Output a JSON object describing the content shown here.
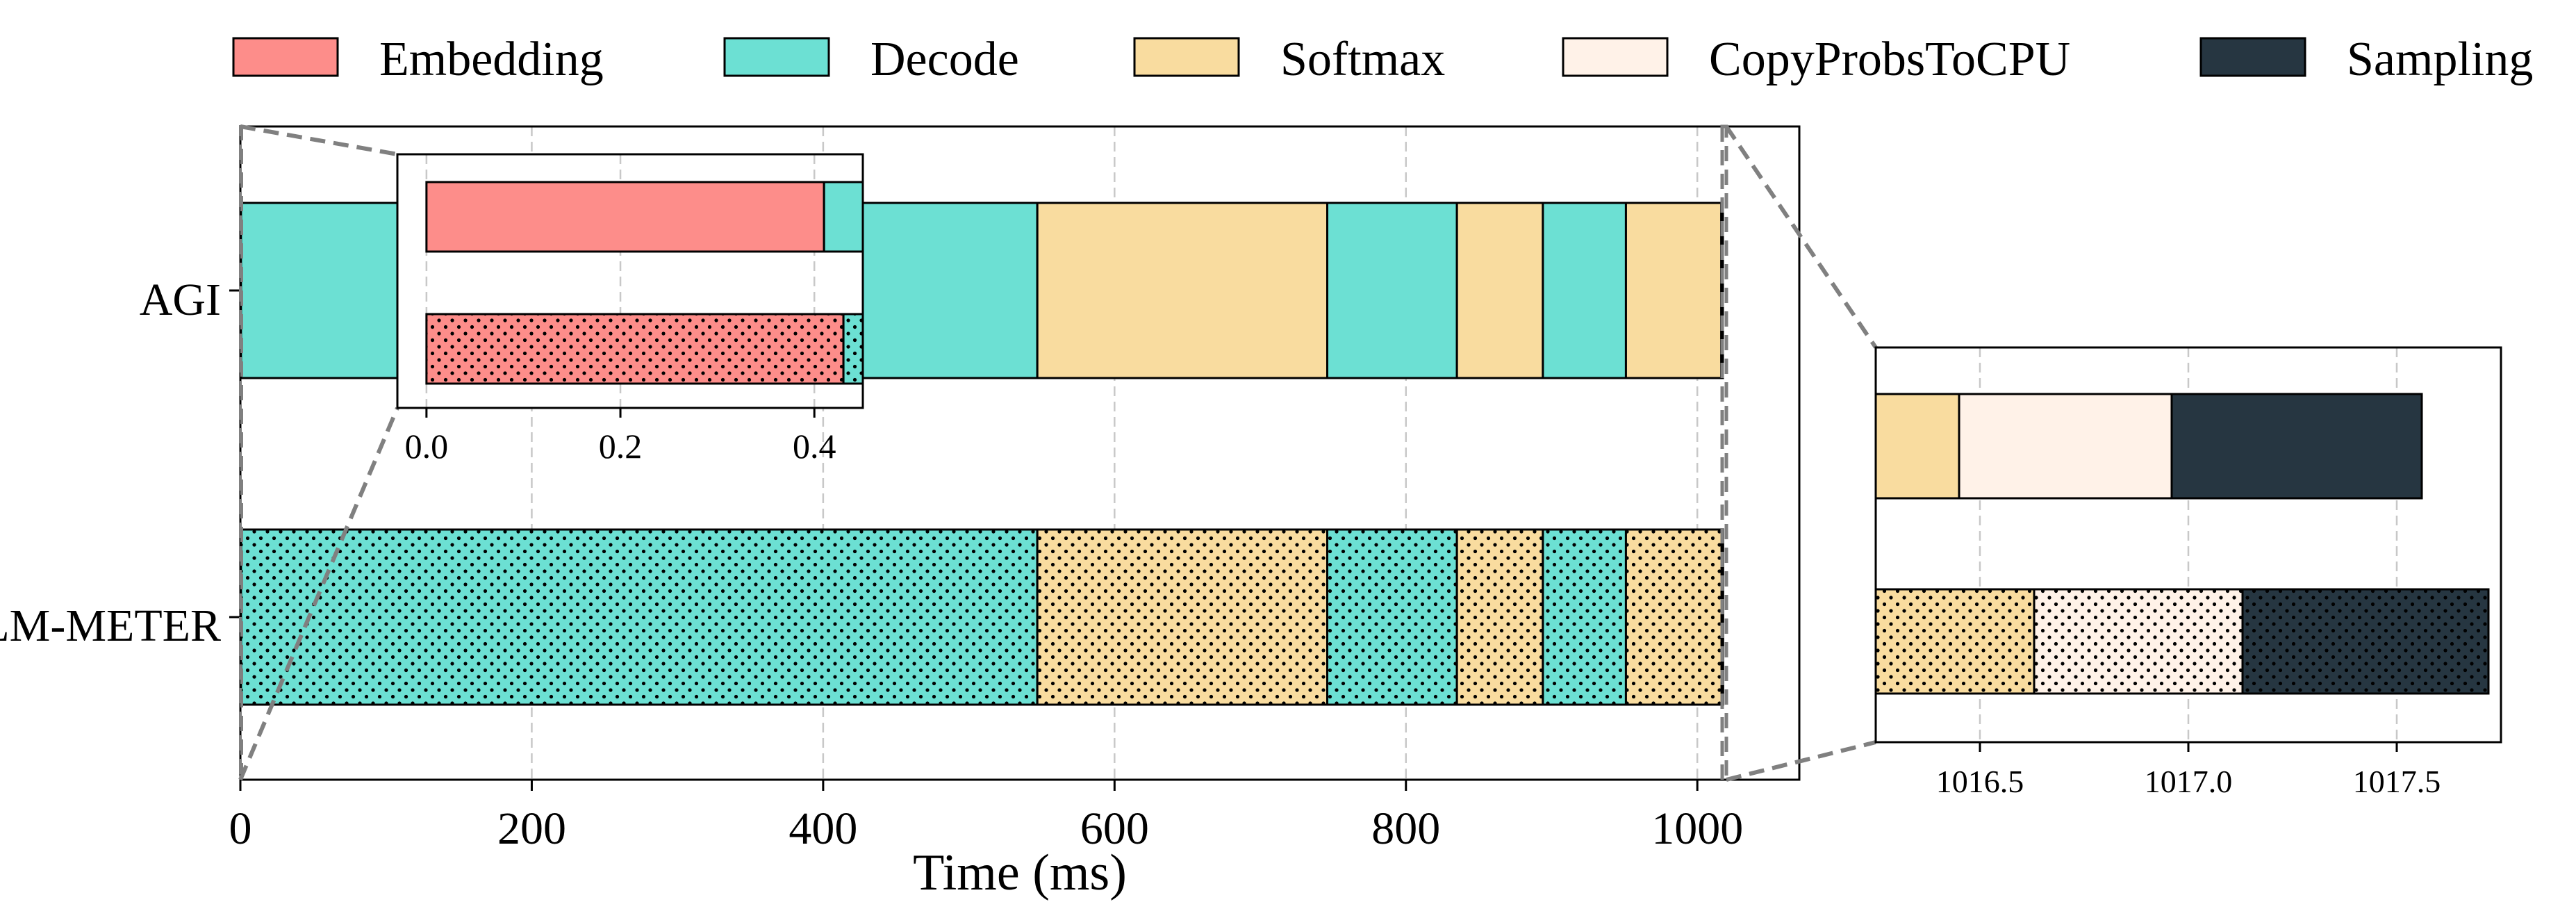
{
  "colors": {
    "Embedding": "#fd8d8a",
    "Decode": "#6ce0d3",
    "Softmax": "#f9dc9f",
    "CopyProbsToCPU": "#fff2e8",
    "Sampling": "#263641",
    "edge": "#000000",
    "grid": "#c8c8c8",
    "connector": "#808080"
  },
  "legend": {
    "placement": "top",
    "items": [
      {
        "name": "Embedding",
        "label": "Embedding"
      },
      {
        "name": "Decode",
        "label": "Decode"
      },
      {
        "name": "Softmax",
        "label": "Softmax"
      },
      {
        "name": "CopyProbsToCPU",
        "label": "CopyProbsToCPU"
      },
      {
        "name": "Sampling",
        "label": "Sampling"
      }
    ]
  },
  "chart_data": [
    {
      "id": "main",
      "type": "bar",
      "orientation": "horizontal-stacked",
      "xlabel": "Time (ms)",
      "xlim": [
        0,
        1070
      ],
      "xticks": [
        0,
        200,
        400,
        600,
        800,
        1000
      ],
      "grid": true,
      "rows": [
        {
          "label": "AGI",
          "hatch": false,
          "segments": [
            {
              "stage": "Embedding",
              "start": 0,
              "end": 0.41
            },
            {
              "stage": "Decode",
              "start": 0.41,
              "end": 547
            },
            {
              "stage": "Softmax",
              "start": 547,
              "end": 746
            },
            {
              "stage": "Decode",
              "start": 746,
              "end": 835
            },
            {
              "stage": "Softmax",
              "start": 835,
              "end": 894
            },
            {
              "stage": "Decode",
              "start": 894,
              "end": 951
            },
            {
              "stage": "Softmax",
              "start": 951,
              "end": 1016.45
            },
            {
              "stage": "CopyProbsToCPU",
              "start": 1016.45,
              "end": 1016.96
            },
            {
              "stage": "Sampling",
              "start": 1016.96,
              "end": 1017.56
            }
          ]
        },
        {
          "label": "LM-METER",
          "label_cap": "LM",
          "label_rest": "-METER",
          "hatch": true,
          "segments": [
            {
              "stage": "Embedding",
              "start": 0,
              "end": 0.43
            },
            {
              "stage": "Decode",
              "start": 0.43,
              "end": 547
            },
            {
              "stage": "Softmax",
              "start": 547,
              "end": 746
            },
            {
              "stage": "Decode",
              "start": 746,
              "end": 835
            },
            {
              "stage": "Softmax",
              "start": 835,
              "end": 894
            },
            {
              "stage": "Decode",
              "start": 894,
              "end": 951
            },
            {
              "stage": "Softmax",
              "start": 951,
              "end": 1016.63
            },
            {
              "stage": "CopyProbsToCPU",
              "start": 1016.63,
              "end": 1017.13
            },
            {
              "stage": "Sampling",
              "start": 1017.13,
              "end": 1017.72
            }
          ]
        }
      ]
    },
    {
      "id": "inset_left",
      "type": "bar",
      "orientation": "horizontal-stacked",
      "xlim": [
        -0.03,
        0.45
      ],
      "xticks": [
        "0.0",
        "0.2",
        "0.4"
      ],
      "xtick_values": [
        0.0,
        0.2,
        0.4
      ],
      "grid": true,
      "zoom_of": "main",
      "zoom_range": [
        0,
        0.45
      ]
    },
    {
      "id": "inset_right",
      "type": "bar",
      "orientation": "horizontal-stacked",
      "xlim": [
        1016.25,
        1017.75
      ],
      "xticks": [
        "1016.5",
        "1017.0",
        "1017.5"
      ],
      "xtick_values": [
        1016.5,
        1017.0,
        1017.5
      ],
      "grid": true,
      "zoom_of": "main",
      "zoom_range": [
        1016.25,
        1017.75
      ]
    }
  ]
}
